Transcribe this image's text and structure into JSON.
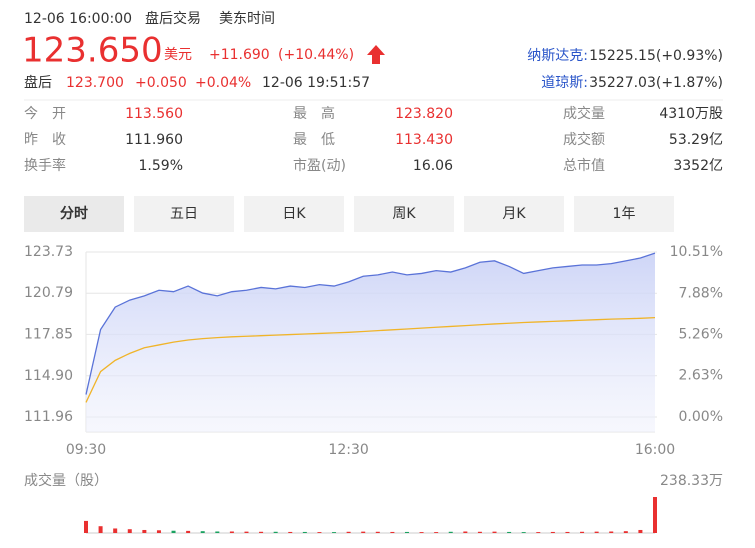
{
  "header": {
    "datetime": "12-06 16:00:00",
    "session": "盘后交易",
    "timezone": "美东时间",
    "price": "123.650",
    "currency": "美元",
    "change": "+11.690",
    "change_pct": "(+10.44%)",
    "after_label": "盘后",
    "after_price": "123.700",
    "after_change": "+0.050",
    "after_pct": "+0.04%",
    "after_time": "12-06 19:51:57",
    "indices": [
      {
        "label": "纳斯达克:",
        "value": "15225.15(+0.93%)"
      },
      {
        "label": "道琼斯:",
        "value": "35227.03(+1.87%)"
      }
    ]
  },
  "stats": [
    [
      {
        "label": "今　开",
        "value": "113.560"
      },
      {
        "label": "最　高",
        "value": "123.820"
      },
      {
        "label": "成交量",
        "value": "4310万股"
      }
    ],
    [
      {
        "label": "昨　收",
        "value": "111.960"
      },
      {
        "label": "最　低",
        "value": "113.430"
      },
      {
        "label": "成交额",
        "value": "53.29亿"
      }
    ],
    [
      {
        "label": "换手率",
        "value": "1.59%"
      },
      {
        "label": "市盈(动)",
        "value": "16.06"
      },
      {
        "label": "总市值",
        "value": "3352亿"
      }
    ]
  ],
  "tabs": [
    "分时",
    "五日",
    "日K",
    "周K",
    "月K",
    "1年"
  ],
  "chart_data": {
    "type": "line",
    "x": [
      "09:30",
      "09:40",
      "09:50",
      "10:00",
      "10:10",
      "10:20",
      "10:30",
      "10:40",
      "10:50",
      "11:00",
      "11:10",
      "11:20",
      "11:30",
      "11:40",
      "11:50",
      "12:00",
      "12:10",
      "12:20",
      "12:30",
      "12:40",
      "12:50",
      "13:00",
      "13:10",
      "13:20",
      "13:30",
      "13:40",
      "13:50",
      "14:00",
      "14:10",
      "14:20",
      "14:30",
      "14:40",
      "14:50",
      "15:00",
      "15:10",
      "15:20",
      "15:30",
      "15:40",
      "15:50",
      "16:00"
    ],
    "series": [
      {
        "color": "#5a73d8",
        "values": [
          113.56,
          118.2,
          119.8,
          120.3,
          120.6,
          121.0,
          120.9,
          121.3,
          120.8,
          120.6,
          120.9,
          121.0,
          121.2,
          121.1,
          121.3,
          121.2,
          121.4,
          121.3,
          121.6,
          122.0,
          122.1,
          122.3,
          122.1,
          122.2,
          122.4,
          122.3,
          122.6,
          123.0,
          123.1,
          122.7,
          122.2,
          122.4,
          122.6,
          122.7,
          122.8,
          122.8,
          122.9,
          123.1,
          123.3,
          123.65
        ]
      },
      {
        "color": "#f0b429",
        "values": [
          113.0,
          115.2,
          116.0,
          116.5,
          116.9,
          117.1,
          117.3,
          117.45,
          117.55,
          117.62,
          117.68,
          117.72,
          117.76,
          117.8,
          117.84,
          117.88,
          117.92,
          117.96,
          118.0,
          118.06,
          118.12,
          118.18,
          118.24,
          118.3,
          118.36,
          118.42,
          118.48,
          118.54,
          118.6,
          118.65,
          118.7,
          118.74,
          118.78,
          118.82,
          118.86,
          118.9,
          118.94,
          118.97,
          119.0,
          119.05
        ]
      }
    ],
    "ylim": [
      111.96,
      123.73
    ],
    "yticks": [
      {
        "value": 123.73,
        "label": "123.73"
      },
      {
        "value": 120.79,
        "label": "120.79"
      },
      {
        "value": 117.85,
        "label": "117.85"
      },
      {
        "value": 114.9,
        "label": "114.90"
      },
      {
        "value": 111.96,
        "label": "111.96"
      }
    ],
    "y2lim": [
      0,
      10.51
    ],
    "y2ticks": [
      {
        "value": 10.51,
        "label": "10.51%"
      },
      {
        "value": 7.88,
        "label": "7.88%"
      },
      {
        "value": 5.26,
        "label": "5.26%"
      },
      {
        "value": 2.63,
        "label": "2.63%"
      },
      {
        "value": 0,
        "label": "0.00%"
      }
    ],
    "xticks": [
      "09:30",
      "12:30",
      "16:00"
    ],
    "grid": true,
    "volume": {
      "title": "成交量（股）",
      "up_color": "#e93030",
      "down_color": "#1aa260",
      "values": [
        80,
        45,
        30,
        25,
        20,
        18,
        15,
        14,
        12,
        10,
        10,
        9,
        8,
        8,
        7,
        7,
        6,
        6,
        8,
        9,
        8,
        7,
        7,
        6,
        6,
        8,
        10,
        8,
        9,
        7,
        6,
        6,
        7,
        7,
        8,
        9,
        10,
        12,
        20,
        238.33
      ],
      "ylim": [
        0,
        238.33
      ],
      "yticks": [
        {
          "value": 238.33,
          "label": "238.33万"
        }
      ]
    }
  }
}
